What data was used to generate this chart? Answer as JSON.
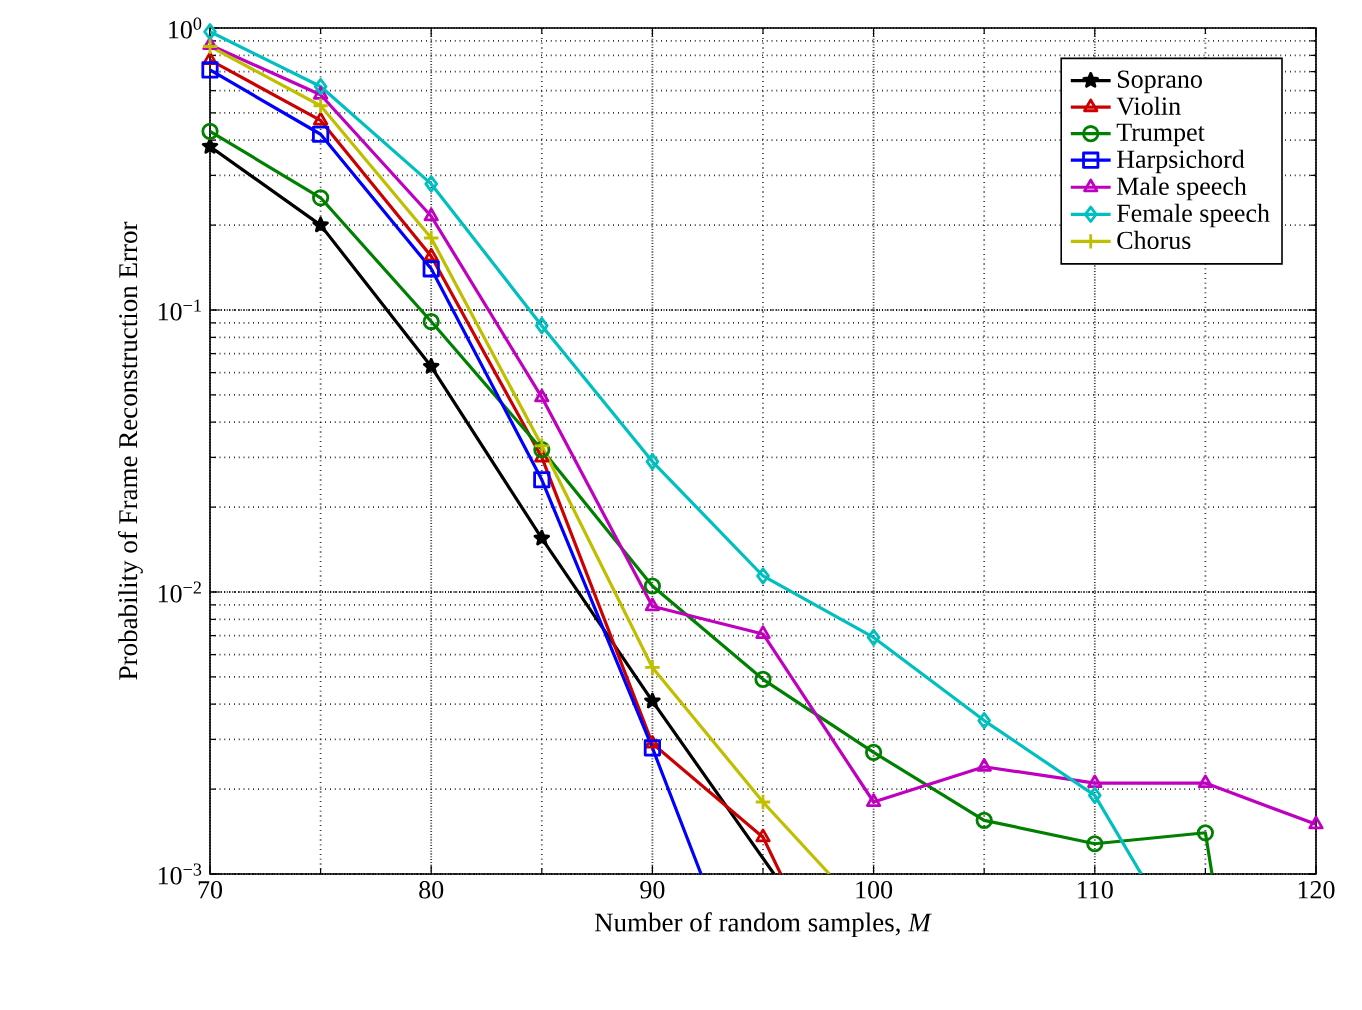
{
  "chart_data": {
    "type": "line",
    "xlabel": "Number of random samples, *M*",
    "ylabel": "Probability of Frame Reconstruction Error",
    "log": "y",
    "grid": true,
    "legend": "top right",
    "line_style": "solid",
    "xlim": [
      70,
      120
    ],
    "xticks": [
      70,
      80,
      90,
      100,
      110,
      120
    ],
    "ylim": [
      0.001,
      1
    ],
    "yticks": [
      {
        "value": 0.001,
        "label": "10$^{−3}$"
      },
      {
        "value": 0.01,
        "label": "10$^{−2}$"
      },
      {
        "value": 0.1,
        "label": "10$^{−1}$"
      },
      {
        "value": 1,
        "label": "10$^{0}$"
      }
    ],
    "series": [
      {
        "name": "Soprano",
        "color": "#000000",
        "marker": "star",
        "x": [
          70,
          75,
          80,
          85,
          90,
          95.5
        ],
        "values": [
          0.38,
          0.2,
          0.063,
          0.0155,
          0.0041,
          0.001
        ]
      },
      {
        "name": "Violin",
        "color": "#cc0000",
        "marker": "triangle",
        "x": [
          70,
          75,
          80,
          85,
          90,
          95,
          95.8
        ],
        "values": [
          0.77,
          0.47,
          0.155,
          0.03,
          0.0029,
          0.00135,
          0.001
        ]
      },
      {
        "name": "Trumpet",
        "color": "#008000",
        "marker": "circle",
        "x": [
          70,
          75,
          80,
          85,
          90,
          95,
          100,
          105,
          110,
          115,
          115.3
        ],
        "values": [
          0.43,
          0.25,
          0.091,
          0.032,
          0.0105,
          0.0049,
          0.0027,
          0.00155,
          0.00128,
          0.0014,
          0.001
        ]
      },
      {
        "name": "Harpsichord",
        "color": "#0000ff",
        "marker": "square",
        "x": [
          70,
          75,
          80,
          85,
          90,
          92.2
        ],
        "values": [
          0.71,
          0.42,
          0.14,
          0.025,
          0.0028,
          0.001
        ]
      },
      {
        "name": "Male speech",
        "color": "#bf00bf",
        "marker": "triangle",
        "x": [
          70,
          75,
          80,
          85,
          90,
          95,
          100,
          105,
          110,
          115,
          120
        ],
        "values": [
          0.87,
          0.58,
          0.215,
          0.049,
          0.0089,
          0.0071,
          0.0018,
          0.0024,
          0.0021,
          0.0021,
          0.0015
        ]
      },
      {
        "name": "Female speech",
        "color": "#00bfbf",
        "marker": "diamond",
        "x": [
          70,
          75,
          80,
          85,
          90,
          95,
          100,
          105,
          110,
          112.1
        ],
        "values": [
          0.97,
          0.62,
          0.28,
          0.088,
          0.029,
          0.0114,
          0.0069,
          0.0035,
          0.0019,
          0.001
        ]
      },
      {
        "name": "Chorus",
        "color": "#bfbf00",
        "marker": "cross",
        "x": [
          70,
          75,
          80,
          85,
          90,
          95,
          98
        ],
        "values": [
          0.86,
          0.53,
          0.18,
          0.033,
          0.0054,
          0.0018,
          0.001
        ]
      }
    ]
  }
}
